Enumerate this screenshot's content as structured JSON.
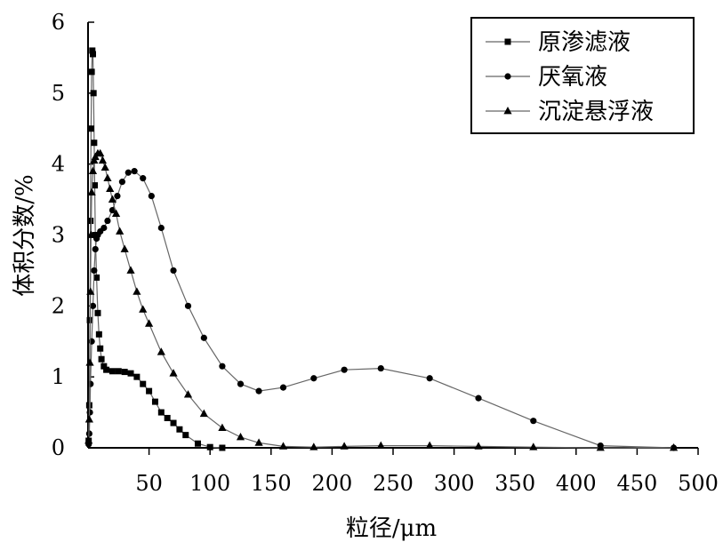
{
  "chart_data": {
    "type": "line",
    "title": "",
    "xlabel": "粒径/μm",
    "ylabel": "体积分数/%",
    "xlim": [
      0,
      500
    ],
    "ylim": [
      0,
      6
    ],
    "x_ticks": [
      50,
      100,
      150,
      200,
      250,
      300,
      350,
      400,
      450,
      500
    ],
    "y_ticks": [
      0,
      1,
      2,
      3,
      4,
      5,
      6
    ],
    "grid": false,
    "legend": "top-right",
    "series": [
      {
        "name": "原渗滤液",
        "marker": "square",
        "color": "#000000",
        "points": [
          [
            0.5,
            0.1
          ],
          [
            1,
            0.6
          ],
          [
            1.5,
            1.8
          ],
          [
            2,
            3.2
          ],
          [
            2.5,
            4.5
          ],
          [
            3,
            5.3
          ],
          [
            3.5,
            5.6
          ],
          [
            4,
            5.55
          ],
          [
            4.5,
            5.0
          ],
          [
            5,
            4.3
          ],
          [
            5.5,
            3.7
          ],
          [
            6,
            3.0
          ],
          [
            7,
            2.4
          ],
          [
            8,
            1.9
          ],
          [
            9,
            1.6
          ],
          [
            10,
            1.4
          ],
          [
            11,
            1.25
          ],
          [
            13,
            1.15
          ],
          [
            15,
            1.1
          ],
          [
            20,
            1.08
          ],
          [
            25,
            1.08
          ],
          [
            30,
            1.07
          ],
          [
            35,
            1.05
          ],
          [
            40,
            1.0
          ],
          [
            45,
            0.9
          ],
          [
            50,
            0.8
          ],
          [
            55,
            0.65
          ],
          [
            60,
            0.5
          ],
          [
            65,
            0.42
          ],
          [
            70,
            0.35
          ],
          [
            75,
            0.26
          ],
          [
            80,
            0.18
          ],
          [
            90,
            0.06
          ],
          [
            100,
            0.01
          ],
          [
            110,
            0.0
          ]
        ]
      },
      {
        "name": "厌氧液",
        "marker": "circle",
        "color": "#000000",
        "points": [
          [
            0.5,
            0.05
          ],
          [
            1,
            0.2
          ],
          [
            1.5,
            0.5
          ],
          [
            2,
            0.9
          ],
          [
            3,
            1.5
          ],
          [
            4,
            2.0
          ],
          [
            5,
            2.5
          ],
          [
            6,
            2.8
          ],
          [
            7,
            2.95
          ],
          [
            8,
            3.0
          ],
          [
            10,
            3.05
          ],
          [
            13,
            3.1
          ],
          [
            16,
            3.2
          ],
          [
            20,
            3.35
          ],
          [
            24,
            3.55
          ],
          [
            28,
            3.75
          ],
          [
            33,
            3.88
          ],
          [
            38,
            3.9
          ],
          [
            45,
            3.8
          ],
          [
            52,
            3.55
          ],
          [
            60,
            3.1
          ],
          [
            70,
            2.5
          ],
          [
            82,
            2.0
          ],
          [
            95,
            1.55
          ],
          [
            110,
            1.15
          ],
          [
            125,
            0.9
          ],
          [
            140,
            0.8
          ],
          [
            160,
            0.85
          ],
          [
            185,
            0.98
          ],
          [
            210,
            1.1
          ],
          [
            240,
            1.12
          ],
          [
            280,
            0.98
          ],
          [
            320,
            0.7
          ],
          [
            365,
            0.38
          ],
          [
            420,
            0.03
          ],
          [
            480,
            0.0
          ]
        ]
      },
      {
        "name": "沉淀悬浮液",
        "marker": "triangle",
        "color": "#000000",
        "points": [
          [
            0.5,
            0.1
          ],
          [
            1,
            0.4
          ],
          [
            1.5,
            1.2
          ],
          [
            2,
            2.2
          ],
          [
            2.5,
            3.0
          ],
          [
            3,
            3.6
          ],
          [
            4,
            3.9
          ],
          [
            5,
            4.05
          ],
          [
            6,
            4.1
          ],
          [
            8,
            4.15
          ],
          [
            10,
            4.15
          ],
          [
            12,
            4.05
          ],
          [
            14,
            3.95
          ],
          [
            16,
            3.8
          ],
          [
            18,
            3.65
          ],
          [
            20,
            3.5
          ],
          [
            23,
            3.3
          ],
          [
            26,
            3.05
          ],
          [
            30,
            2.8
          ],
          [
            35,
            2.5
          ],
          [
            40,
            2.2
          ],
          [
            45,
            1.95
          ],
          [
            50,
            1.75
          ],
          [
            60,
            1.35
          ],
          [
            70,
            1.05
          ],
          [
            82,
            0.75
          ],
          [
            95,
            0.48
          ],
          [
            110,
            0.28
          ],
          [
            125,
            0.15
          ],
          [
            140,
            0.07
          ],
          [
            160,
            0.02
          ],
          [
            185,
            0.01
          ],
          [
            210,
            0.02
          ],
          [
            240,
            0.03
          ],
          [
            280,
            0.03
          ],
          [
            320,
            0.02
          ],
          [
            365,
            0.01
          ],
          [
            420,
            0.0
          ],
          [
            480,
            0.0
          ]
        ]
      }
    ]
  }
}
